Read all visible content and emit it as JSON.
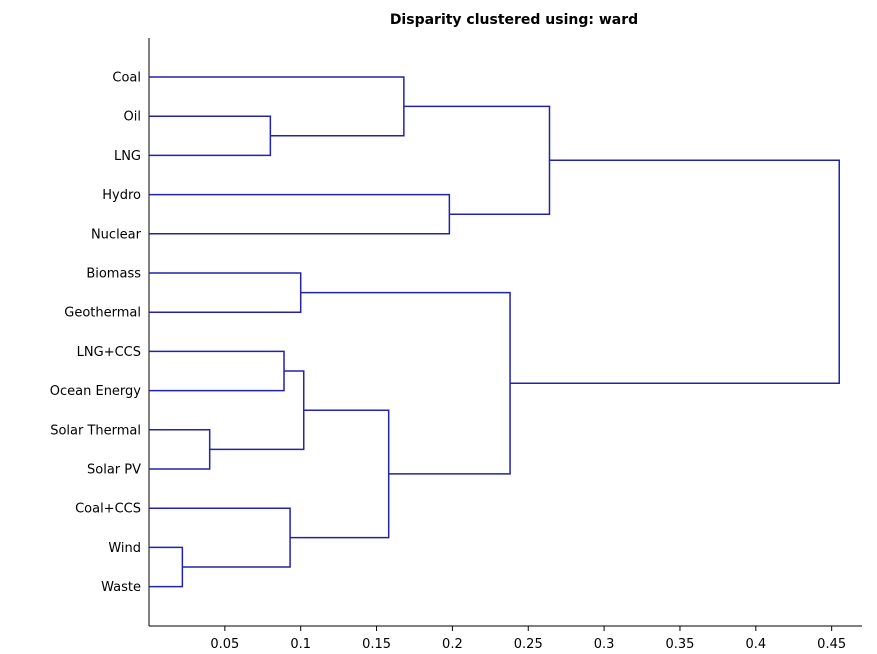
{
  "chart_data": {
    "type": "dendrogram",
    "title": "Disparity clustered using: ward",
    "xlabel": "",
    "ylabel": "",
    "xlim": [
      0.0,
      0.47
    ],
    "x_ticks": [
      0.05,
      0.1,
      0.15,
      0.2,
      0.25,
      0.3,
      0.35,
      0.4,
      0.45
    ],
    "x_tick_labels": [
      "0.05",
      "0.1",
      "0.15",
      "0.2",
      "0.25",
      "0.3",
      "0.35",
      "0.4",
      "0.45"
    ],
    "line_color": "#2323a8",
    "leaves": [
      "Coal",
      "Oil",
      "LNG",
      "Hydro",
      "Nuclear",
      "Biomass",
      "Geothermal",
      "LNG+CCS",
      "Ocean Energy",
      "Solar Thermal",
      "Solar PV",
      "Coal+CCS",
      "Wind",
      "Waste"
    ],
    "merges": [
      {
        "id": "m1",
        "children": [
          "Wind",
          "Waste"
        ],
        "height": 0.022
      },
      {
        "id": "m2",
        "children": [
          "Solar Thermal",
          "Solar PV"
        ],
        "height": 0.04
      },
      {
        "id": "m3",
        "children": [
          "Oil",
          "LNG"
        ],
        "height": 0.08
      },
      {
        "id": "m4",
        "children": [
          "LNG+CCS",
          "Ocean Energy"
        ],
        "height": 0.089
      },
      {
        "id": "m5",
        "children": [
          "Coal+CCS",
          "m1"
        ],
        "height": 0.093
      },
      {
        "id": "m6",
        "children": [
          "Biomass",
          "Geothermal"
        ],
        "height": 0.1
      },
      {
        "id": "m7",
        "children": [
          "m4",
          "m2"
        ],
        "height": 0.102
      },
      {
        "id": "m8",
        "children": [
          "m7",
          "m5"
        ],
        "height": 0.158
      },
      {
        "id": "m9",
        "children": [
          "Coal",
          "m3"
        ],
        "height": 0.168
      },
      {
        "id": "m10",
        "children": [
          "Hydro",
          "Nuclear"
        ],
        "height": 0.198
      },
      {
        "id": "m11",
        "children": [
          "m6",
          "m8"
        ],
        "height": 0.238
      },
      {
        "id": "m12",
        "children": [
          "m9",
          "m10"
        ],
        "height": 0.264
      },
      {
        "id": "m13",
        "children": [
          "m12",
          "m11"
        ],
        "height": 0.455
      }
    ]
  }
}
